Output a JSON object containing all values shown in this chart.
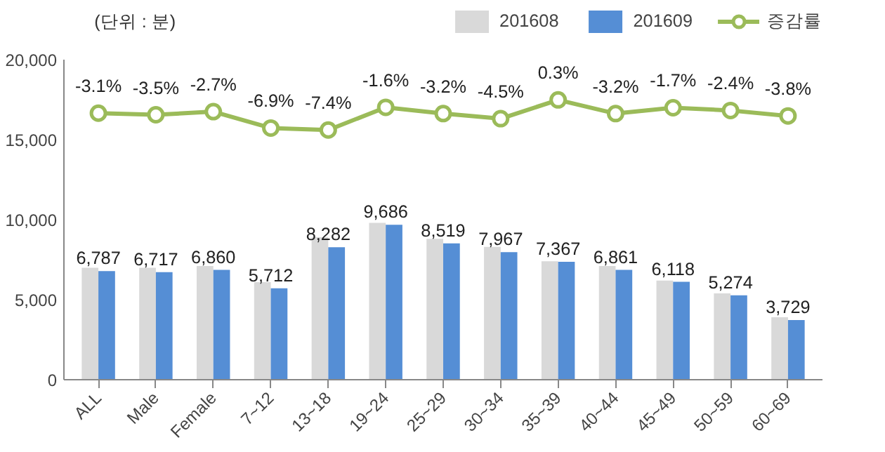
{
  "chart_data": {
    "type": "bar",
    "ylabel": "(단위 : 분)",
    "categories": [
      "ALL",
      "Male",
      "Female",
      "7~12",
      "13~18",
      "19~24",
      "25~29",
      "30~34",
      "35~39",
      "40~44",
      "45~49",
      "50~59",
      "60~69"
    ],
    "series": [
      {
        "name": "201608",
        "color": "#d9d9d9",
        "values": [
          7000,
          7000,
          7100,
          6100,
          8900,
          9800,
          8800,
          8300,
          7400,
          7100,
          6200,
          5400,
          3900
        ]
      },
      {
        "name": "201609",
        "color": "#558ed5",
        "values": [
          6787,
          6717,
          6860,
          5712,
          8282,
          9686,
          8519,
          7967,
          7367,
          6861,
          6118,
          5274,
          3729
        ],
        "value_labels": [
          "6,787",
          "6,717",
          "6,860",
          "5,712",
          "8,282",
          "9,686",
          "8,519",
          "7,967",
          "7,367",
          "6,861",
          "6,118",
          "5,274",
          "3,729"
        ]
      },
      {
        "name": "증감률",
        "type": "line",
        "axis": "y2",
        "color": "#9bbb59",
        "marker": "circle",
        "values": [
          -3.1,
          -3.5,
          -2.7,
          -6.9,
          -7.4,
          -1.6,
          -3.2,
          -4.5,
          0.3,
          -3.2,
          -1.7,
          -2.4,
          -3.8
        ],
        "value_labels": [
          "-3.1%",
          "-3.5%",
          "-2.7%",
          "-6.9%",
          "-7.4%",
          "-1.6%",
          "-3.2%",
          "-4.5%",
          "0.3%",
          "-3.2%",
          "-1.7%",
          "-2.4%",
          "-3.8%"
        ]
      }
    ],
    "ylim": [
      0,
      20000
    ],
    "yticks": [
      {
        "value": 0,
        "label": "0"
      },
      {
        "value": 5000,
        "label": "5,000"
      },
      {
        "value": 10000,
        "label": "10,000"
      },
      {
        "value": 15000,
        "label": "15,000"
      },
      {
        "value": 20000,
        "label": "20,000"
      }
    ],
    "y2lim": [
      -71.3,
      10.6
    ],
    "tick_labels": "xy",
    "grid": false,
    "legend": "top right"
  }
}
